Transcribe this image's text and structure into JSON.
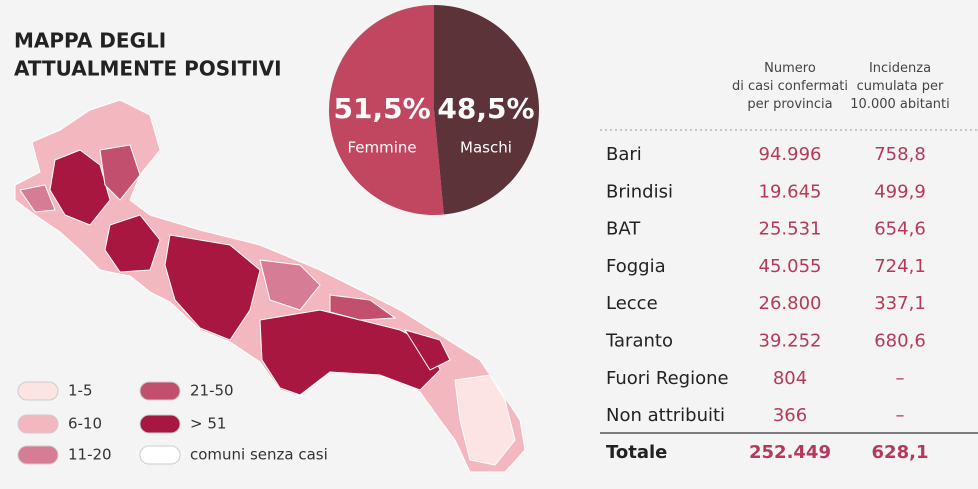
{
  "map": {
    "title": [
      "MAPPA DEGLI",
      "ATTUALMENTE POSITIVI"
    ],
    "legend": [
      {
        "label": "1-5",
        "color": "#fbe4e2"
      },
      {
        "label": "6-10",
        "color": "#f3b8bf"
      },
      {
        "label": "11-20",
        "color": "#d67c95"
      },
      {
        "label": "21-50",
        "color": "#c24f6b"
      },
      {
        "label": "> 51",
        "color": "#a8173f"
      },
      {
        "label": "comuni senza casi",
        "color": "#ffffff"
      }
    ]
  },
  "chart_data": {
    "type": "pie",
    "categories": [
      "Femmine",
      "Maschi"
    ],
    "values": [
      51.5,
      48.5
    ],
    "value_labels": [
      "51,5%",
      "48,5%"
    ],
    "colors": [
      "#c0475f",
      "#5c3339"
    ]
  },
  "table": {
    "headers": [
      "Numero\ndi casi confermati\nper provincia",
      "Incidenza\ncumulata per\n10.000 abitanti"
    ],
    "rows": [
      [
        "Bari",
        "94.996",
        "758,8"
      ],
      [
        "Brindisi",
        "19.645",
        "499,9"
      ],
      [
        "BAT",
        "25.531",
        "654,6"
      ],
      [
        "Foggia",
        "45.055",
        "724,1"
      ],
      [
        "Lecce",
        "26.800",
        "337,1"
      ],
      [
        "Taranto",
        "39.252",
        "680,6"
      ],
      [
        "Fuori Regione",
        "804",
        "–"
      ],
      [
        "Non attribuiti",
        "366",
        "–"
      ]
    ],
    "total": [
      "Totale",
      "252.449",
      "628,1"
    ]
  }
}
